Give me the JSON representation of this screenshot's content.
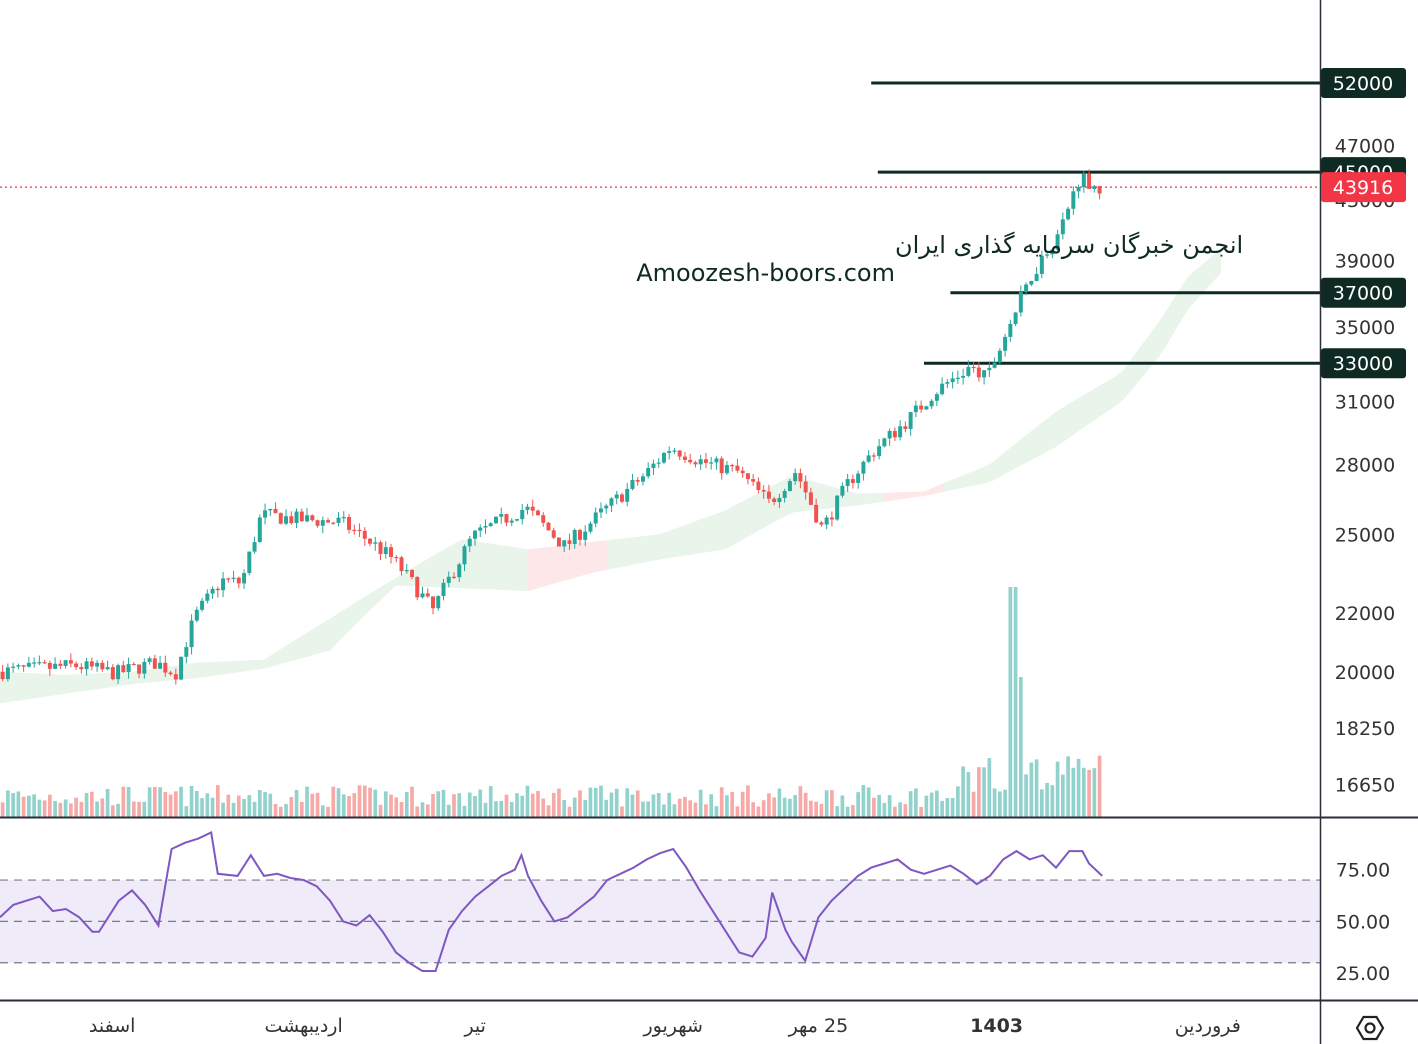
{
  "chart_data": {
    "type": "candlestick",
    "watermark": {
      "line1": "انجمن خبرگان سرمایه گذاری ایران",
      "line2": "Amoozesh-boors.com"
    },
    "price_axis": {
      "scale": "log",
      "ylim": [
        15800,
        59500
      ],
      "ticks": [
        "16650",
        "18250",
        "20000",
        "22000",
        "25000",
        "28000",
        "31000",
        "35000",
        "39000",
        "43000",
        "47000"
      ],
      "tick_values": [
        16650,
        18250,
        20000,
        22000,
        25000,
        28000,
        31000,
        35000,
        39000,
        43000,
        47000
      ]
    },
    "horizontal_levels": [
      {
        "label": "52000",
        "value": 52000,
        "color": "#0e2a22",
        "start": 0.66
      },
      {
        "label": "45000",
        "value": 45000,
        "color": "#0e2a22",
        "start": 0.665
      },
      {
        "label": "37000",
        "value": 37000,
        "color": "#0e2a22",
        "start": 0.72
      },
      {
        "label": "33000",
        "value": 33000,
        "color": "#0e2a22",
        "start": 0.7
      }
    ],
    "last_price": {
      "label": "43916",
      "value": 43916,
      "color": "#f23645"
    },
    "time_axis": [
      {
        "label": "اسفند",
        "bold": false,
        "pos": 0.085
      },
      {
        "label": "اردیبهشت",
        "bold": false,
        "pos": 0.23
      },
      {
        "label": "تیر",
        "bold": false,
        "pos": 0.36
      },
      {
        "label": "شهریور",
        "bold": false,
        "pos": 0.51
      },
      {
        "label": "25 مهر",
        "bold": false,
        "pos": 0.62
      },
      {
        "label": "1403",
        "bold": true,
        "pos": 0.755
      },
      {
        "label": "فروردین",
        "bold": false,
        "pos": 0.915
      }
    ],
    "price_path": [
      [
        0,
        20000
      ],
      [
        0.03,
        20100
      ],
      [
        0.06,
        20200
      ],
      [
        0.09,
        19950
      ],
      [
        0.12,
        20300
      ],
      [
        0.135,
        19950
      ],
      [
        0.15,
        21900
      ],
      [
        0.17,
        23200
      ],
      [
        0.185,
        23100
      ],
      [
        0.2,
        25800
      ],
      [
        0.23,
        25600
      ],
      [
        0.26,
        25500
      ],
      [
        0.28,
        24800
      ],
      [
        0.3,
        24000
      ],
      [
        0.33,
        22100
      ],
      [
        0.36,
        24900
      ],
      [
        0.4,
        26100
      ],
      [
        0.43,
        24500
      ],
      [
        0.46,
        26000
      ],
      [
        0.49,
        27500
      ],
      [
        0.51,
        28800
      ],
      [
        0.535,
        28100
      ],
      [
        0.56,
        27700
      ],
      [
        0.585,
        26300
      ],
      [
        0.605,
        27700
      ],
      [
        0.625,
        25200
      ],
      [
        0.645,
        27200
      ],
      [
        0.665,
        28700
      ],
      [
        0.69,
        30100
      ],
      [
        0.71,
        31500
      ],
      [
        0.735,
        32700
      ],
      [
        0.75,
        32200
      ],
      [
        0.765,
        34800
      ],
      [
        0.785,
        38300
      ],
      [
        0.805,
        40900
      ],
      [
        0.82,
        44700
      ],
      [
        0.835,
        43900
      ]
    ],
    "ichimoku_cloud": {
      "bullish_color": "#4caf50",
      "bearish_color": "#f23645",
      "upper": [
        [
          0,
          20000
        ],
        [
          0.05,
          19900
        ],
        [
          0.1,
          20000
        ],
        [
          0.15,
          20300
        ],
        [
          0.2,
          20400
        ],
        [
          0.25,
          21800
        ],
        [
          0.3,
          23300
        ],
        [
          0.35,
          24800
        ],
        [
          0.4,
          24400
        ],
        [
          0.45,
          24700
        ],
        [
          0.5,
          25000
        ],
        [
          0.55,
          26000
        ],
        [
          0.6,
          27500
        ],
        [
          0.65,
          26700
        ],
        [
          0.7,
          26800
        ],
        [
          0.75,
          28000
        ],
        [
          0.8,
          30500
        ],
        [
          0.85,
          32500
        ],
        [
          0.88,
          35500
        ],
        [
          0.9,
          38000
        ],
        [
          0.925,
          39700
        ]
      ],
      "lower": [
        [
          0,
          19000
        ],
        [
          0.05,
          19300
        ],
        [
          0.1,
          19600
        ],
        [
          0.15,
          19800
        ],
        [
          0.2,
          20100
        ],
        [
          0.25,
          20700
        ],
        [
          0.3,
          23000
        ],
        [
          0.35,
          22900
        ],
        [
          0.4,
          22800
        ],
        [
          0.45,
          23500
        ],
        [
          0.5,
          24000
        ],
        [
          0.55,
          24400
        ],
        [
          0.6,
          25900
        ],
        [
          0.65,
          26200
        ],
        [
          0.7,
          26600
        ],
        [
          0.75,
          27200
        ],
        [
          0.8,
          28800
        ],
        [
          0.85,
          31000
        ],
        [
          0.88,
          33500
        ],
        [
          0.9,
          36000
        ],
        [
          0.925,
          38200
        ]
      ]
    },
    "volume": {
      "colors": {
        "up": "#26a69a",
        "down": "#ef5350"
      },
      "spike_at": 0.77,
      "spike_relative": 1.0
    },
    "rsi": {
      "ticks": [
        "25.00",
        "50.00",
        "75.00"
      ],
      "tick_values": [
        25,
        50,
        75
      ],
      "ylim": [
        12,
        100
      ],
      "band": [
        30,
        70
      ],
      "color": "#7e57c2",
      "band_color": "#7e57c2",
      "values": [
        [
          0,
          52
        ],
        [
          0.01,
          58
        ],
        [
          0.02,
          60
        ],
        [
          0.03,
          62
        ],
        [
          0.04,
          55
        ],
        [
          0.05,
          56
        ],
        [
          0.06,
          52
        ],
        [
          0.07,
          45
        ],
        [
          0.075,
          45
        ],
        [
          0.09,
          60
        ],
        [
          0.1,
          65
        ],
        [
          0.11,
          58
        ],
        [
          0.12,
          48
        ],
        [
          0.13,
          85
        ],
        [
          0.14,
          88
        ],
        [
          0.15,
          90
        ],
        [
          0.16,
          93
        ],
        [
          0.165,
          73
        ],
        [
          0.18,
          72
        ],
        [
          0.19,
          82
        ],
        [
          0.2,
          72
        ],
        [
          0.21,
          73
        ],
        [
          0.22,
          71
        ],
        [
          0.23,
          70
        ],
        [
          0.24,
          67
        ],
        [
          0.25,
          60
        ],
        [
          0.26,
          50
        ],
        [
          0.27,
          48
        ],
        [
          0.28,
          53
        ],
        [
          0.29,
          45
        ],
        [
          0.3,
          35
        ],
        [
          0.31,
          30
        ],
        [
          0.32,
          26
        ],
        [
          0.33,
          26
        ],
        [
          0.34,
          46
        ],
        [
          0.35,
          55
        ],
        [
          0.36,
          62
        ],
        [
          0.37,
          67
        ],
        [
          0.38,
          72
        ],
        [
          0.39,
          75
        ],
        [
          0.395,
          82
        ],
        [
          0.4,
          72
        ],
        [
          0.41,
          60
        ],
        [
          0.42,
          50
        ],
        [
          0.43,
          52
        ],
        [
          0.44,
          57
        ],
        [
          0.45,
          62
        ],
        [
          0.46,
          70
        ],
        [
          0.47,
          73
        ],
        [
          0.48,
          76
        ],
        [
          0.49,
          80
        ],
        [
          0.5,
          83
        ],
        [
          0.51,
          85
        ],
        [
          0.52,
          76
        ],
        [
          0.53,
          65
        ],
        [
          0.54,
          55
        ],
        [
          0.55,
          45
        ],
        [
          0.56,
          35
        ],
        [
          0.57,
          33
        ],
        [
          0.58,
          42
        ],
        [
          0.585,
          64
        ],
        [
          0.595,
          46
        ],
        [
          0.6,
          40
        ],
        [
          0.61,
          31
        ],
        [
          0.62,
          52
        ],
        [
          0.63,
          60
        ],
        [
          0.64,
          66
        ],
        [
          0.65,
          72
        ],
        [
          0.66,
          76
        ],
        [
          0.67,
          78
        ],
        [
          0.68,
          80
        ],
        [
          0.69,
          75
        ],
        [
          0.7,
          73
        ],
        [
          0.71,
          75
        ],
        [
          0.72,
          77
        ],
        [
          0.73,
          73
        ],
        [
          0.74,
          68
        ],
        [
          0.75,
          72
        ],
        [
          0.76,
          80
        ],
        [
          0.77,
          84
        ],
        [
          0.78,
          80
        ],
        [
          0.79,
          82
        ],
        [
          0.8,
          76
        ],
        [
          0.81,
          84
        ],
        [
          0.82,
          84
        ],
        [
          0.825,
          78
        ],
        [
          0.835,
          72
        ]
      ]
    }
  },
  "ui": {
    "settings_icon": "gear-icon"
  }
}
